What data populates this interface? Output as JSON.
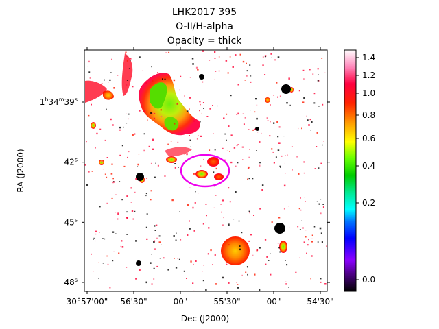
{
  "chart_data": {
    "type": "heatmap",
    "title": [
      "LHK2017 395",
      "O-II/H-alpha",
      "Opacity = thick"
    ],
    "xlabel": "Dec (J2000)",
    "ylabel": "RA (J2000)",
    "x_ticks": [
      {
        "label": "30°57'00\"",
        "value_arcsec": 0
      },
      {
        "label": "56'30\"",
        "value_arcsec": -30
      },
      {
        "label": "00\"",
        "value_arcsec": -60
      },
      {
        "label": "55'30\"",
        "value_arcsec": -90
      },
      {
        "label": "00\"",
        "value_arcsec": -120
      },
      {
        "label": "54'30\"",
        "value_arcsec": -150
      }
    ],
    "y_ticks": [
      {
        "label": "1h34m39s",
        "main": "1",
        "h": "h",
        "m_val": "34",
        "m": "m",
        "s_val": "39",
        "s": "s",
        "value_s": 39
      },
      {
        "label": "42s",
        "main": "42",
        "s": "s",
        "value_s": 42
      },
      {
        "label": "45s",
        "main": "45",
        "s": "s",
        "value_s": 45
      },
      {
        "label": "48s",
        "main": "48",
        "s": "s",
        "value_s": 48
      }
    ],
    "colorbar": {
      "colormap": "gist_ncar-like (black, purple, blue, cyan, green, yellow, orange, red, pink, white)",
      "range": [
        -0.1,
        1.45
      ],
      "ticks": [
        "0.0",
        "0.2",
        "0.4",
        "0.6",
        "0.8",
        "1.0",
        "1.2",
        "1.4"
      ],
      "tick_values": [
        0.0,
        0.2,
        0.4,
        0.6,
        0.8,
        1.0,
        1.2,
        1.4
      ]
    },
    "annotation": {
      "shape": "ellipse",
      "color": "#ee00ee"
    },
    "background_color": "#ffffff"
  }
}
